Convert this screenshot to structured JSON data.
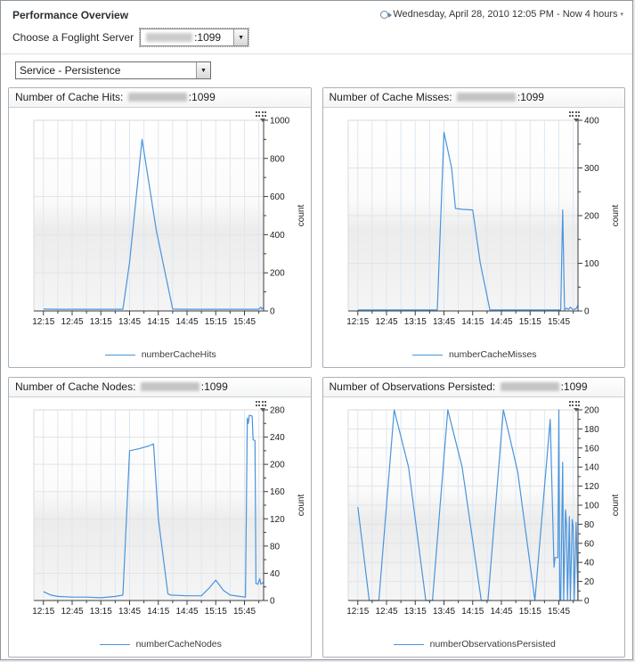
{
  "page": {
    "title": "Performance Overview",
    "time_range": "Wednesday, April 28, 2010 12:05 PM - Now 4 hours",
    "server_label": "Choose a Foglight Server",
    "server_port_suffix": ":1099",
    "service_value": "Service - Persistence"
  },
  "icons": {
    "time_range_caret": "▾",
    "combo_arrow": "▼"
  },
  "colors": {
    "line": "#4a94dc",
    "grid_vertical": "#dde7f3",
    "grid_horizontal": "#e3e3e3",
    "axis": "#3c3c3c",
    "plot_bg_top": "#ffffff",
    "plot_bg_mid": "#ececec",
    "plot_bg_bottom": "#f5f5f5",
    "panel_border": "#a9b0b8"
  },
  "chart_data": [
    {
      "type": "line",
      "title_prefix": "Number of Cache Hits: ",
      "title_redacted_host": true,
      "title_suffix": ":1099",
      "legend": "numberCacheHits",
      "ylabel": "count",
      "ylim": [
        0,
        1000
      ],
      "ytick_major": 200,
      "ytick_minor": 100,
      "xlim_minutes": [
        0,
        240
      ],
      "xtick_minor_step": 15,
      "xticks": {
        "labels": [
          "12:15",
          "12:45",
          "13:15",
          "13:45",
          "14:15",
          "14:45",
          "15:15",
          "15:45"
        ],
        "minutes": [
          10,
          40,
          70,
          100,
          130,
          160,
          190,
          220
        ]
      },
      "grid": true,
      "legend_position": "bottom",
      "points": [
        [
          10,
          10
        ],
        [
          25,
          9
        ],
        [
          40,
          9
        ],
        [
          55,
          9
        ],
        [
          70,
          9
        ],
        [
          85,
          9
        ],
        [
          93,
          9
        ],
        [
          100,
          255
        ],
        [
          113,
          900
        ],
        [
          128,
          420
        ],
        [
          145,
          10
        ],
        [
          160,
          9
        ],
        [
          175,
          9
        ],
        [
          190,
          9
        ],
        [
          205,
          9
        ],
        [
          220,
          9
        ],
        [
          230,
          9
        ],
        [
          235,
          9
        ],
        [
          237,
          20
        ],
        [
          238,
          10
        ],
        [
          240,
          17
        ]
      ]
    },
    {
      "type": "line",
      "title_prefix": "Number of Cache Misses: ",
      "title_redacted_host": true,
      "title_suffix": ":1099",
      "legend": "numberCacheMisses",
      "ylabel": "count",
      "ylim": [
        0,
        400
      ],
      "ytick_major": 100,
      "ytick_minor": 50,
      "xlim_minutes": [
        0,
        240
      ],
      "xtick_minor_step": 15,
      "xticks": {
        "labels": [
          "12:15",
          "12:45",
          "13:15",
          "13:45",
          "14:15",
          "14:45",
          "15:15",
          "15:45"
        ],
        "minutes": [
          10,
          40,
          70,
          100,
          130,
          160,
          190,
          220
        ]
      },
      "grid": true,
      "legend_position": "bottom",
      "points": [
        [
          10,
          2
        ],
        [
          25,
          2
        ],
        [
          40,
          2
        ],
        [
          55,
          2
        ],
        [
          70,
          2
        ],
        [
          85,
          2
        ],
        [
          93,
          2
        ],
        [
          100,
          375
        ],
        [
          108,
          300
        ],
        [
          112,
          215
        ],
        [
          120,
          213
        ],
        [
          130,
          212
        ],
        [
          138,
          100
        ],
        [
          148,
          2
        ],
        [
          160,
          2
        ],
        [
          175,
          2
        ],
        [
          190,
          2
        ],
        [
          205,
          2
        ],
        [
          218,
          2
        ],
        [
          222,
          2
        ],
        [
          224,
          212
        ],
        [
          226,
          2
        ],
        [
          228,
          6
        ],
        [
          230,
          3
        ],
        [
          232,
          8
        ],
        [
          234,
          4
        ],
        [
          236,
          3
        ],
        [
          238,
          5
        ],
        [
          240,
          12
        ]
      ]
    },
    {
      "type": "line",
      "title_prefix": "Number of Cache Nodes: ",
      "title_redacted_host": true,
      "title_suffix": ":1099",
      "legend": "numberCacheNodes",
      "ylabel": "count",
      "ylim": [
        0,
        280
      ],
      "ytick_major": 40,
      "ytick_minor": 20,
      "xlim_minutes": [
        0,
        240
      ],
      "xtick_minor_step": 15,
      "xticks": {
        "labels": [
          "12:15",
          "12:45",
          "13:15",
          "13:45",
          "14:15",
          "14:45",
          "15:15",
          "15:45"
        ],
        "minutes": [
          10,
          40,
          70,
          100,
          130,
          160,
          190,
          220
        ]
      },
      "grid": true,
      "legend_position": "bottom",
      "points": [
        [
          10,
          13
        ],
        [
          18,
          8
        ],
        [
          25,
          6
        ],
        [
          40,
          5
        ],
        [
          55,
          5
        ],
        [
          70,
          4
        ],
        [
          85,
          6
        ],
        [
          93,
          8
        ],
        [
          100,
          220
        ],
        [
          110,
          223
        ],
        [
          120,
          227
        ],
        [
          125,
          230
        ],
        [
          130,
          120
        ],
        [
          140,
          10
        ],
        [
          143,
          8
        ],
        [
          160,
          7
        ],
        [
          175,
          7
        ],
        [
          183,
          18
        ],
        [
          190,
          30
        ],
        [
          198,
          15
        ],
        [
          205,
          8
        ],
        [
          215,
          6
        ],
        [
          221,
          5
        ],
        [
          223,
          268
        ],
        [
          224,
          260
        ],
        [
          225,
          272
        ],
        [
          228,
          271
        ],
        [
          229,
          236
        ],
        [
          231,
          235
        ],
        [
          232,
          25
        ],
        [
          234,
          24
        ],
        [
          236,
          32
        ],
        [
          237,
          24
        ],
        [
          240,
          27
        ]
      ]
    },
    {
      "type": "line",
      "title_prefix": "Number of Observations Persisted: ",
      "title_redacted_host": true,
      "title_suffix": ":1099",
      "legend": "numberObservationsPersisted",
      "ylabel": "count",
      "ylim": [
        0,
        200
      ],
      "ytick_major": 20,
      "ytick_minor": 10,
      "xlim_minutes": [
        0,
        240
      ],
      "xtick_minor_step": 15,
      "xticks": {
        "labels": [
          "12:15",
          "12:45",
          "13:15",
          "13:45",
          "14:15",
          "14:45",
          "15:15",
          "15:45"
        ],
        "minutes": [
          10,
          40,
          70,
          100,
          130,
          160,
          190,
          220
        ]
      },
      "grid": true,
      "legend_position": "bottom",
      "points": [
        [
          10,
          98
        ],
        [
          22,
          0
        ],
        [
          32,
          0
        ],
        [
          48,
          200
        ],
        [
          63,
          140
        ],
        [
          81,
          0
        ],
        [
          88,
          0
        ],
        [
          104,
          200
        ],
        [
          119,
          140
        ],
        [
          139,
          0
        ],
        [
          146,
          0
        ],
        [
          162,
          200
        ],
        [
          177,
          135
        ],
        [
          195,
          0
        ],
        [
          211,
          190
        ],
        [
          215,
          35
        ],
        [
          216,
          45
        ],
        [
          219,
          45
        ],
        [
          220,
          200
        ],
        [
          221,
          0
        ],
        [
          222,
          0
        ],
        [
          224,
          145
        ],
        [
          225,
          0
        ],
        [
          227,
          95
        ],
        [
          228,
          80
        ],
        [
          229,
          0
        ],
        [
          231,
          88
        ],
        [
          232,
          0
        ],
        [
          234,
          85
        ],
        [
          235,
          78
        ],
        [
          236,
          0
        ],
        [
          238,
          82
        ],
        [
          240,
          0
        ]
      ]
    }
  ]
}
